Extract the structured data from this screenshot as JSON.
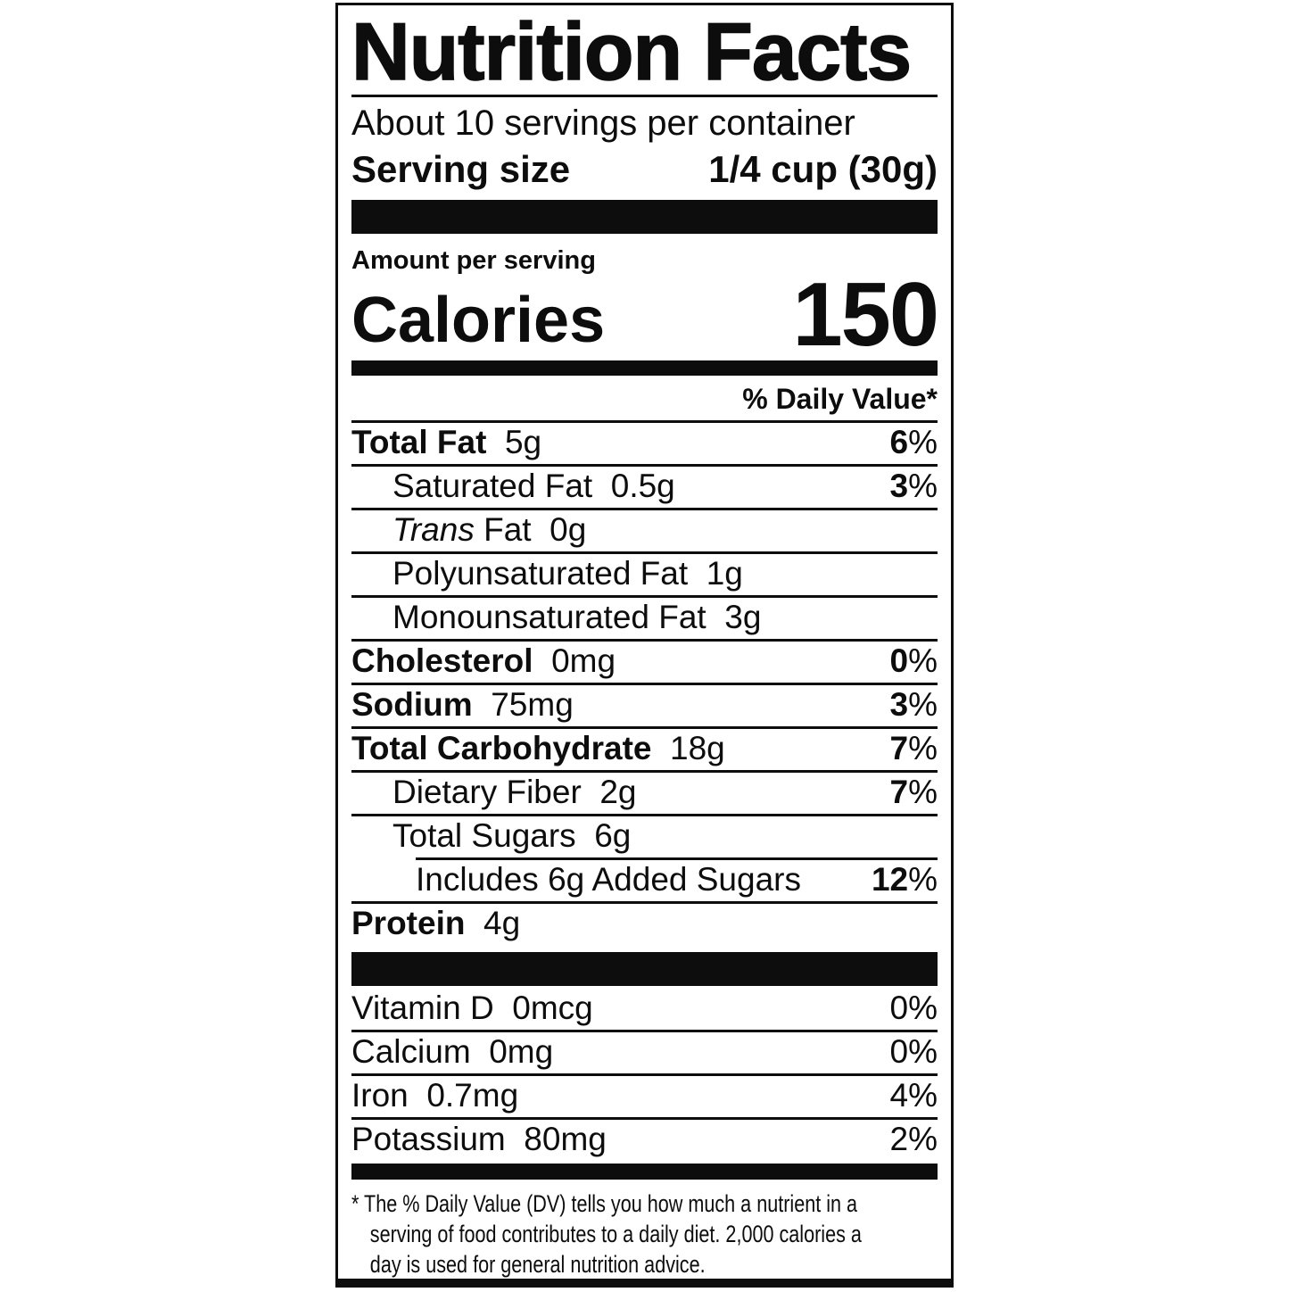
{
  "colors": {
    "text": "#0d0d0d",
    "background": "#ffffff",
    "rule": "#0d0d0d"
  },
  "label": {
    "title": "Nutrition Facts",
    "servings_per_container": "About 10 servings per container",
    "serving_size_label": "Serving size",
    "serving_size_value": "1/4 cup (30g)",
    "amount_per_serving": "Amount per serving",
    "calories_label": "Calories",
    "calories_value": "150",
    "daily_value_header": "% Daily Value*",
    "nutrients": [
      {
        "name": "Total Fat",
        "amount": "5g",
        "dv": "6%",
        "bold": true,
        "indent": 0
      },
      {
        "name": "Saturated Fat",
        "amount": "0.5g",
        "dv": "3%",
        "bold": false,
        "indent": 1
      },
      {
        "name": "Trans Fat",
        "amount": "0g",
        "dv": "",
        "bold": false,
        "indent": 1,
        "italic_prefix": true
      },
      {
        "name": "Polyunsaturated Fat",
        "amount": "1g",
        "dv": "",
        "bold": false,
        "indent": 1
      },
      {
        "name": "Monounsaturated Fat",
        "amount": "3g",
        "dv": "",
        "bold": false,
        "indent": 1
      },
      {
        "name": "Cholesterol",
        "amount": "0mg",
        "dv": "0%",
        "bold": true,
        "indent": 0
      },
      {
        "name": "Sodium",
        "amount": "75mg",
        "dv": "3%",
        "bold": true,
        "indent": 0
      },
      {
        "name": "Total Carbohydrate",
        "amount": "18g",
        "dv": "7%",
        "bold": true,
        "indent": 0
      },
      {
        "name": "Dietary Fiber",
        "amount": "2g",
        "dv": "7%",
        "bold": false,
        "indent": 1
      },
      {
        "name": "Total Sugars",
        "amount": "6g",
        "dv": "",
        "bold": false,
        "indent": 1
      },
      {
        "name": "Includes 6g Added Sugars",
        "amount": "",
        "dv": "12%",
        "bold": false,
        "indent": 2,
        "rule": "indent"
      },
      {
        "name": "Protein",
        "amount": "4g",
        "dv": "",
        "bold": true,
        "indent": 0
      }
    ],
    "vitamins": [
      {
        "name": "Vitamin D",
        "amount": "0mcg",
        "dv": "0%",
        "bold": false,
        "indent": 0
      },
      {
        "name": "Calcium",
        "amount": "0mg",
        "dv": "0%",
        "bold": false,
        "indent": 0
      },
      {
        "name": "Iron",
        "amount": "0.7mg",
        "dv": "4%",
        "bold": false,
        "indent": 0
      },
      {
        "name": "Potassium",
        "amount": "80mg",
        "dv": "2%",
        "bold": false,
        "indent": 0
      }
    ],
    "footnote_lines": [
      "* The % Daily Value (DV) tells you how much a nutrient in a",
      "serving of food contributes to a daily diet. 2,000 calories a",
      "day is used for general nutrition advice."
    ]
  }
}
